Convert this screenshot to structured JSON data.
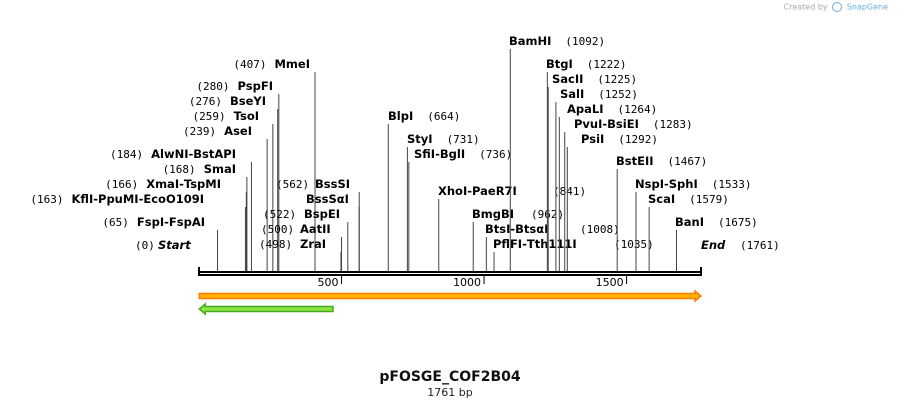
{
  "credit": {
    "prefix": "Created by",
    "brand": "SnapGene"
  },
  "title": "pFOSGE_COF2B04",
  "subtitle": "1761 bp",
  "map": {
    "length": 1761,
    "start_label": "Start",
    "end_label": "End",
    "start_pos": "(0)",
    "end_pos": "(1761)",
    "ticks": [
      500,
      1000,
      1500
    ],
    "line_color": "#000000",
    "features": [
      {
        "name": "forward-arrow",
        "start": 1,
        "end": 1761,
        "direction": "forward",
        "fill": "#ffb300",
        "edge": "#ff7c00"
      },
      {
        "name": "reverse-arrow",
        "start": 1,
        "end": 470,
        "direction": "reverse",
        "fill": "#88e840",
        "edge": "#4ca820"
      }
    ],
    "sites": [
      {
        "id": "fspi",
        "pos": 65,
        "parts": [
          "FspI",
          "FspAI"
        ],
        "pos_label": "(65)"
      },
      {
        "id": "kfli",
        "pos": 163,
        "parts": [
          "KflI",
          "PpuMI",
          "EcoO109I"
        ],
        "pos_label": "(163)"
      },
      {
        "id": "xmai",
        "pos": 166,
        "parts": [
          "XmaI",
          "TspMI"
        ],
        "pos_label": "(166)"
      },
      {
        "id": "smai",
        "pos": 168,
        "parts": [
          "SmaI"
        ],
        "pos_label": "(168)"
      },
      {
        "id": "alwni",
        "pos": 184,
        "parts": [
          "AlwNI",
          "BstAPI"
        ],
        "pos_label": "(184)"
      },
      {
        "id": "asei",
        "pos": 239,
        "parts": [
          "AseI"
        ],
        "pos_label": "(239)"
      },
      {
        "id": "tsoi",
        "pos": 259,
        "parts": [
          "TsoI"
        ],
        "pos_label": "(259)"
      },
      {
        "id": "bseyi",
        "pos": 276,
        "parts": [
          "BseYI"
        ],
        "pos_label": "(276)"
      },
      {
        "id": "pspfi",
        "pos": 280,
        "parts": [
          "PspFI"
        ],
        "pos_label": "(280)"
      },
      {
        "id": "mmei",
        "pos": 407,
        "parts": [
          "MmeI"
        ],
        "pos_label": "(407)"
      },
      {
        "id": "zrai",
        "pos": 498,
        "parts": [
          "ZraI"
        ],
        "pos_label": "(498)"
      },
      {
        "id": "aatii",
        "pos": 500,
        "parts": [
          "AatII"
        ],
        "pos_label": "(500)"
      },
      {
        "id": "bspei",
        "pos": 522,
        "parts": [
          "BspEI"
        ],
        "pos_label": "(522)"
      },
      {
        "id": "bsssai",
        "pos": 562,
        "parts": [
          "BssSαI"
        ],
        "pos_label": ""
      },
      {
        "id": "bsssi",
        "pos": 562,
        "parts": [
          "BssSI"
        ],
        "pos_label": "(562)"
      },
      {
        "id": "blpi",
        "pos": 664,
        "parts": [
          "BlpI"
        ],
        "pos_label": "(664)"
      },
      {
        "id": "styi",
        "pos": 731,
        "parts": [
          "StyI"
        ],
        "pos_label": "(731)"
      },
      {
        "id": "sfii",
        "pos": 736,
        "parts": [
          "SfiI",
          "BglI"
        ],
        "pos_label": "(736)"
      },
      {
        "id": "xhoi",
        "pos": 841,
        "parts": [
          "XhoI",
          "PaeR7I"
        ],
        "pos_label": "(841)"
      },
      {
        "id": "bmgbi",
        "pos": 962,
        "parts": [
          "BmgBI"
        ],
        "pos_label": "(962)"
      },
      {
        "id": "btsi",
        "pos": 1008,
        "parts": [
          "BtsI",
          "BtsαI"
        ],
        "pos_label": "(1008)"
      },
      {
        "id": "pflfi",
        "pos": 1035,
        "parts": [
          "PflFI",
          "Tth111I"
        ],
        "pos_label": "(1035)"
      },
      {
        "id": "bamhi",
        "pos": 1092,
        "parts": [
          "BamHI"
        ],
        "pos_label": "(1092)"
      },
      {
        "id": "btgi",
        "pos": 1222,
        "parts": [
          "BtgI"
        ],
        "pos_label": "(1222)"
      },
      {
        "id": "sacii",
        "pos": 1225,
        "parts": [
          "SacII"
        ],
        "pos_label": "(1225)"
      },
      {
        "id": "sali",
        "pos": 1252,
        "parts": [
          "SalI"
        ],
        "pos_label": "(1252)"
      },
      {
        "id": "apali",
        "pos": 1264,
        "parts": [
          "ApaLI"
        ],
        "pos_label": "(1264)"
      },
      {
        "id": "pvui",
        "pos": 1283,
        "parts": [
          "PvuI",
          "BsiEI"
        ],
        "pos_label": "(1283)"
      },
      {
        "id": "psii",
        "pos": 1292,
        "parts": [
          "PsiI"
        ],
        "pos_label": "(1292)"
      },
      {
        "id": "bsteii",
        "pos": 1467,
        "parts": [
          "BstEII"
        ],
        "pos_label": "(1467)"
      },
      {
        "id": "nspi",
        "pos": 1533,
        "parts": [
          "NspI",
          "SphI"
        ],
        "pos_label": "(1533)"
      },
      {
        "id": "scai",
        "pos": 1579,
        "parts": [
          "ScaI"
        ],
        "pos_label": "(1579)"
      },
      {
        "id": "bani",
        "pos": 1675,
        "parts": [
          "BanI"
        ],
        "pos_label": "(1675)"
      }
    ]
  }
}
